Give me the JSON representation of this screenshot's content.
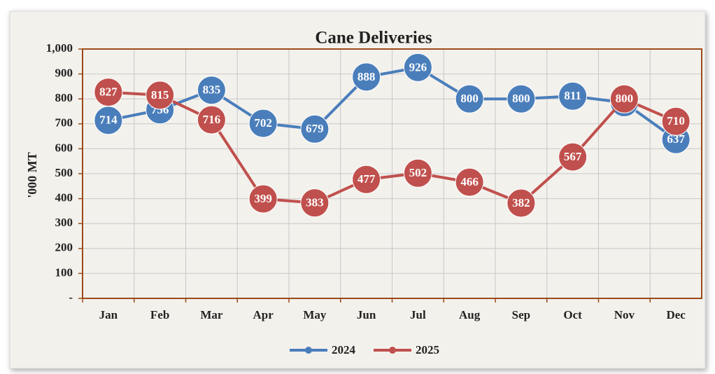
{
  "chart_data": {
    "type": "line",
    "title": "Cane Deliveries",
    "ylabel": "'000 MT",
    "categories": [
      "Jan",
      "Feb",
      "Mar",
      "Apr",
      "May",
      "Jun",
      "Jul",
      "Aug",
      "Sep",
      "Oct",
      "Nov",
      "Dec"
    ],
    "series": [
      {
        "name": "2024",
        "color": "#4a7ebb",
        "values": [
          714,
          756,
          835,
          702,
          679,
          888,
          926,
          800,
          800,
          811,
          785,
          637
        ]
      },
      {
        "name": "2025",
        "color": "#c0504d",
        "values": [
          827,
          815,
          716,
          399,
          383,
          477,
          502,
          466,
          382,
          567,
          800,
          710
        ]
      }
    ],
    "ylim": [
      0,
      1000
    ],
    "yticks": [
      {
        "value": 0,
        "label": "-"
      },
      100,
      200,
      300,
      400,
      500,
      600,
      700,
      800,
      900,
      {
        "value": 1000,
        "label": "1,000"
      }
    ],
    "grid": true,
    "legend": "bottom"
  }
}
